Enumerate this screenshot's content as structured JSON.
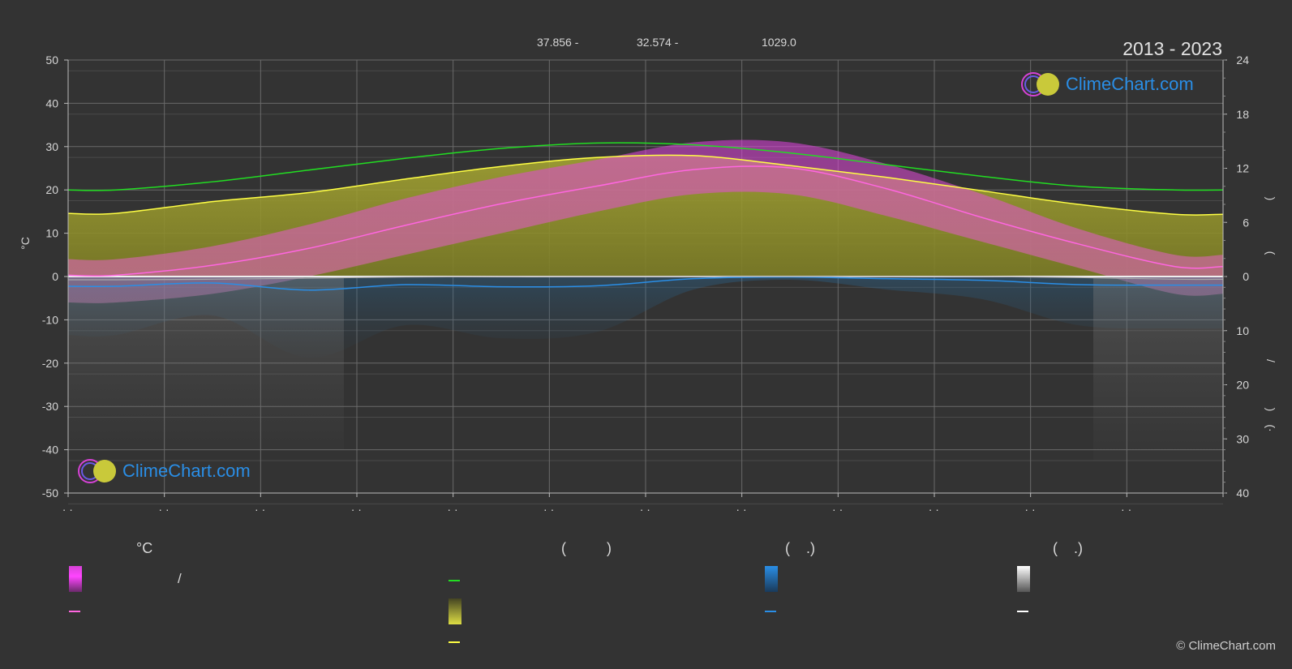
{
  "header": {
    "period": "2013 - 2023",
    "top_stats": [
      "37.856 -",
      "32.574 -",
      "1029.0"
    ]
  },
  "logo": {
    "text": "ClimeChart.com"
  },
  "copyright": "© ClimeChart.com",
  "legend": {
    "col1_head": "°C",
    "col1_range_mark": "/",
    "col2_head": "(          )",
    "col3_head": "(    .)",
    "col4_head": "(    .)"
  },
  "colors": {
    "daylight": "#22dd22",
    "sunshine": "#ffff44",
    "temp_mean": "#ff66e0",
    "temp_band": "#d642d6",
    "rain": "#2a8ee6",
    "snow": "#dddddd",
    "sunshine_fill": "#9a9a2a"
  },
  "chart_data": {
    "type": "line",
    "title": "",
    "months_axis_labels": [
      "· ·",
      "· ·",
      "· ·",
      "· ·",
      "· ·",
      "· ·",
      "· ·",
      "· ·",
      "· ·",
      "· ·",
      "· ·",
      "· ·"
    ],
    "left_axis": {
      "label": "°C",
      "ylim": [
        -50,
        50
      ],
      "ticks": [
        50,
        40,
        30,
        20,
        10,
        0,
        -10,
        -20,
        -30,
        -40,
        -50
      ]
    },
    "right_axis_top": {
      "ylim": [
        0,
        24
      ],
      "ticks": [
        24,
        18,
        12,
        6,
        0
      ]
    },
    "right_axis_bottom": {
      "ylim": [
        0,
        40
      ],
      "ticks": [
        0,
        10,
        20,
        30,
        40
      ]
    },
    "right_axis_labels": [
      ")",
      "(",
      "/",
      ")",
      "(·"
    ],
    "grid": true,
    "series": [
      {
        "key": "daylight",
        "values": [
          9.6,
          10.5,
          11.8,
          13.1,
          14.2,
          14.8,
          14.6,
          13.7,
          12.4,
          11.1,
          10.0,
          9.6
        ]
      },
      {
        "key": "sunshine",
        "values": [
          7.0,
          8.3,
          9.3,
          10.8,
          12.2,
          13.2,
          13.4,
          12.3,
          11.0,
          9.5,
          8.0,
          6.9
        ]
      },
      {
        "key": "temp_mean",
        "values": [
          0.3,
          2.6,
          6.5,
          11.8,
          16.8,
          20.9,
          24.7,
          25.1,
          20.3,
          13.6,
          7.5,
          2.3
        ]
      },
      {
        "key": "rain",
        "values": [
          1.8,
          1.2,
          2.5,
          1.5,
          1.9,
          1.7,
          0.4,
          0.1,
          0.4,
          0.7,
          1.5,
          1.6
        ]
      },
      {
        "key": "snow",
        "values": [
          0.6,
          0.5,
          0.3,
          0.1,
          0,
          0,
          0,
          0,
          0,
          0,
          0.2,
          0.5
        ]
      }
    ],
    "bands": {
      "temp_max": [
        4,
        7,
        12,
        18,
        23,
        27,
        31,
        31,
        26,
        19,
        11,
        5
      ],
      "temp_min": [
        -6,
        -4,
        0,
        5,
        10,
        15,
        19,
        19,
        14,
        8,
        2,
        -4
      ]
    }
  }
}
